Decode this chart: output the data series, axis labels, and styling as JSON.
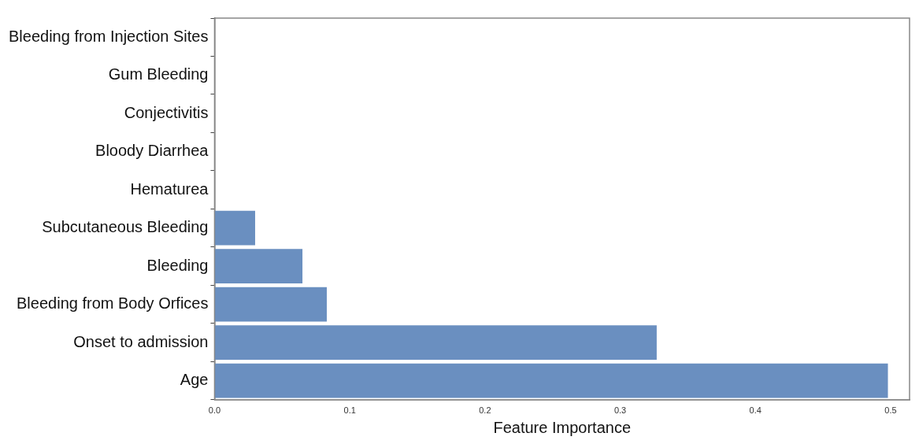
{
  "chart_data": {
    "type": "bar",
    "orientation": "horizontal",
    "xlabel": "Feature Importance",
    "categories": [
      "Bleeding from Injection Sites",
      "Gum Bleeding",
      "Conjectivitis",
      "Bloody Diarrhea",
      "Hematurea",
      "Subcutaneous Bleeding",
      "Bleeding",
      "Bleeding from Body Orfices",
      "Onset to admission",
      "Age"
    ],
    "values": [
      0,
      0,
      0,
      0,
      0,
      0.03,
      0.065,
      0.083,
      0.327,
      0.498
    ],
    "color": "#6a8fc0",
    "xlim": [
      0,
      0.514
    ],
    "xticks": [
      {
        "value": 0,
        "label": "0.0"
      },
      0.1,
      0.2,
      0.3,
      0.4,
      0.5
    ],
    "grid": false,
    "legend": false
  }
}
